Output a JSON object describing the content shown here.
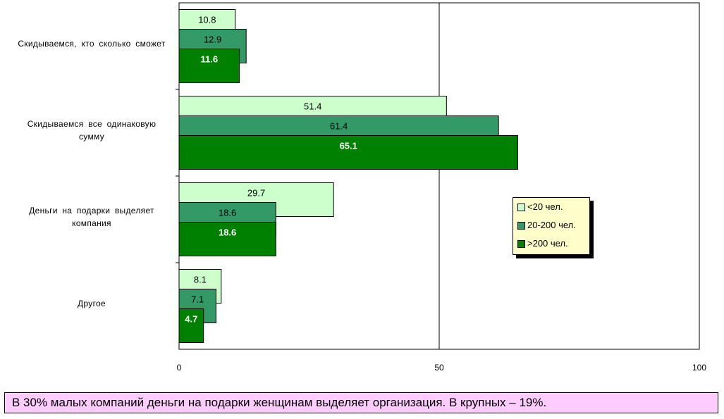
{
  "chart_data": {
    "type": "bar",
    "orientation": "horizontal",
    "categories": [
      "Скидываемся, кто сколько сможет",
      "Скидываемся все одинаковую сумму",
      "Деньги на подарки выделяет компания",
      "Другое"
    ],
    "category_lines": [
      [
        "Скидываемся, кто сколько сможет"
      ],
      [
        "Скидываемся все одинаковую",
        "сумму"
      ],
      [
        "Деньги на подарки выделяет",
        "компания"
      ],
      [
        "Другое"
      ]
    ],
    "series": [
      {
        "name": "<20 чел.",
        "color": "#ccffcc",
        "label_color": "#000000",
        "label_bold": false,
        "values": [
          10.8,
          51.4,
          29.7,
          8.1
        ]
      },
      {
        "name": "20-200 чел.",
        "color": "#339966",
        "label_color": "#000000",
        "label_bold": false,
        "values": [
          12.9,
          61.4,
          18.6,
          7.1
        ]
      },
      {
        "name": ">200 чел.",
        "color": "#008000",
        "label_color": "#ffffff",
        "label_bold": true,
        "values": [
          11.6,
          65.1,
          18.6,
          4.7
        ]
      }
    ],
    "data_labels": [
      [
        "10.8",
        "51.4",
        "29.7",
        "8.1"
      ],
      [
        "12.9",
        "61.4",
        "18.6",
        "7.1"
      ],
      [
        "11.6",
        "65.1",
        "18.6",
        "4.7"
      ]
    ],
    "xlim": [
      0,
      100
    ],
    "xticks": [
      "0",
      "50",
      "100"
    ],
    "title": "",
    "xlabel": "",
    "ylabel": "",
    "grid": "vertical lines at 50 and 100",
    "legend_position": "right, middle"
  },
  "caption": "В 30% малых компаний деньги на подарки женщинам выделяет организация. В крупных – 19%."
}
